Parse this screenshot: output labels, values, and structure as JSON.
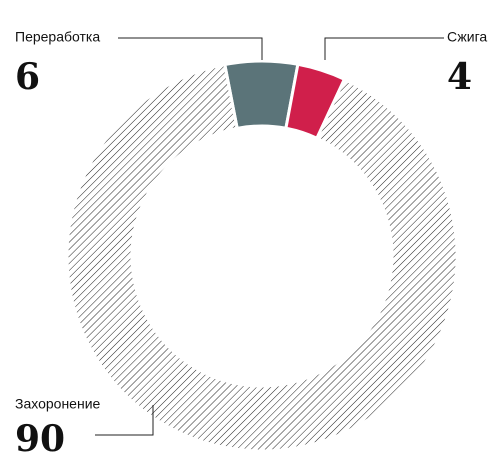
{
  "chart_data": {
    "type": "donut",
    "categories": [
      "Переработка",
      "Сжига",
      "Захоронение"
    ],
    "values": [
      6,
      4,
      90
    ],
    "colors": [
      "#5b7479",
      "#d01f4b",
      "#222222"
    ],
    "hatched": [
      false,
      false,
      true
    ]
  }
}
